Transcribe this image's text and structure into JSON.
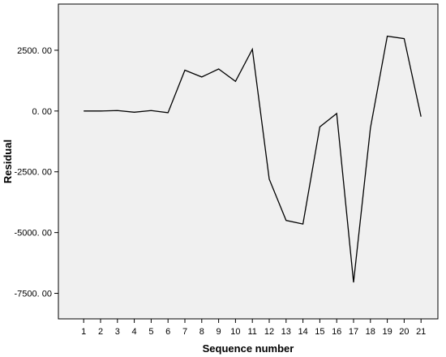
{
  "chart_data": {
    "type": "line",
    "xlabel": "Sequence number",
    "ylabel": "Residual",
    "x": [
      1,
      2,
      3,
      4,
      5,
      6,
      7,
      8,
      9,
      10,
      11,
      12,
      13,
      14,
      15,
      16,
      17,
      18,
      19,
      20,
      21
    ],
    "x_tick_labels": [
      "1",
      "2",
      "3",
      "4",
      "5",
      "6",
      "7",
      "8",
      "9",
      "10",
      "11",
      "12",
      "13",
      "14",
      "15",
      "16",
      "17",
      "18",
      "19",
      "20",
      "21"
    ],
    "series": [
      {
        "values": [
          0,
          0,
          20,
          -50,
          20,
          -70,
          1680,
          1400,
          1730,
          1220,
          2540,
          -2800,
          -4500,
          -4650,
          -650,
          -100,
          -7050,
          -700,
          3080,
          2980,
          -230
        ]
      }
    ],
    "y_ticks": [
      2500,
      0,
      -2500,
      -5000,
      -7500
    ],
    "y_tick_labels": [
      "2500. 00",
      "0. 00",
      "-2500. 00",
      "-5000. 00",
      "-7500. 00"
    ],
    "ylim": [
      -8550,
      4400
    ],
    "xlim": [
      -0.5,
      22
    ],
    "grid": false,
    "background_color": "#f0f0f0",
    "line_color": "#000000"
  }
}
